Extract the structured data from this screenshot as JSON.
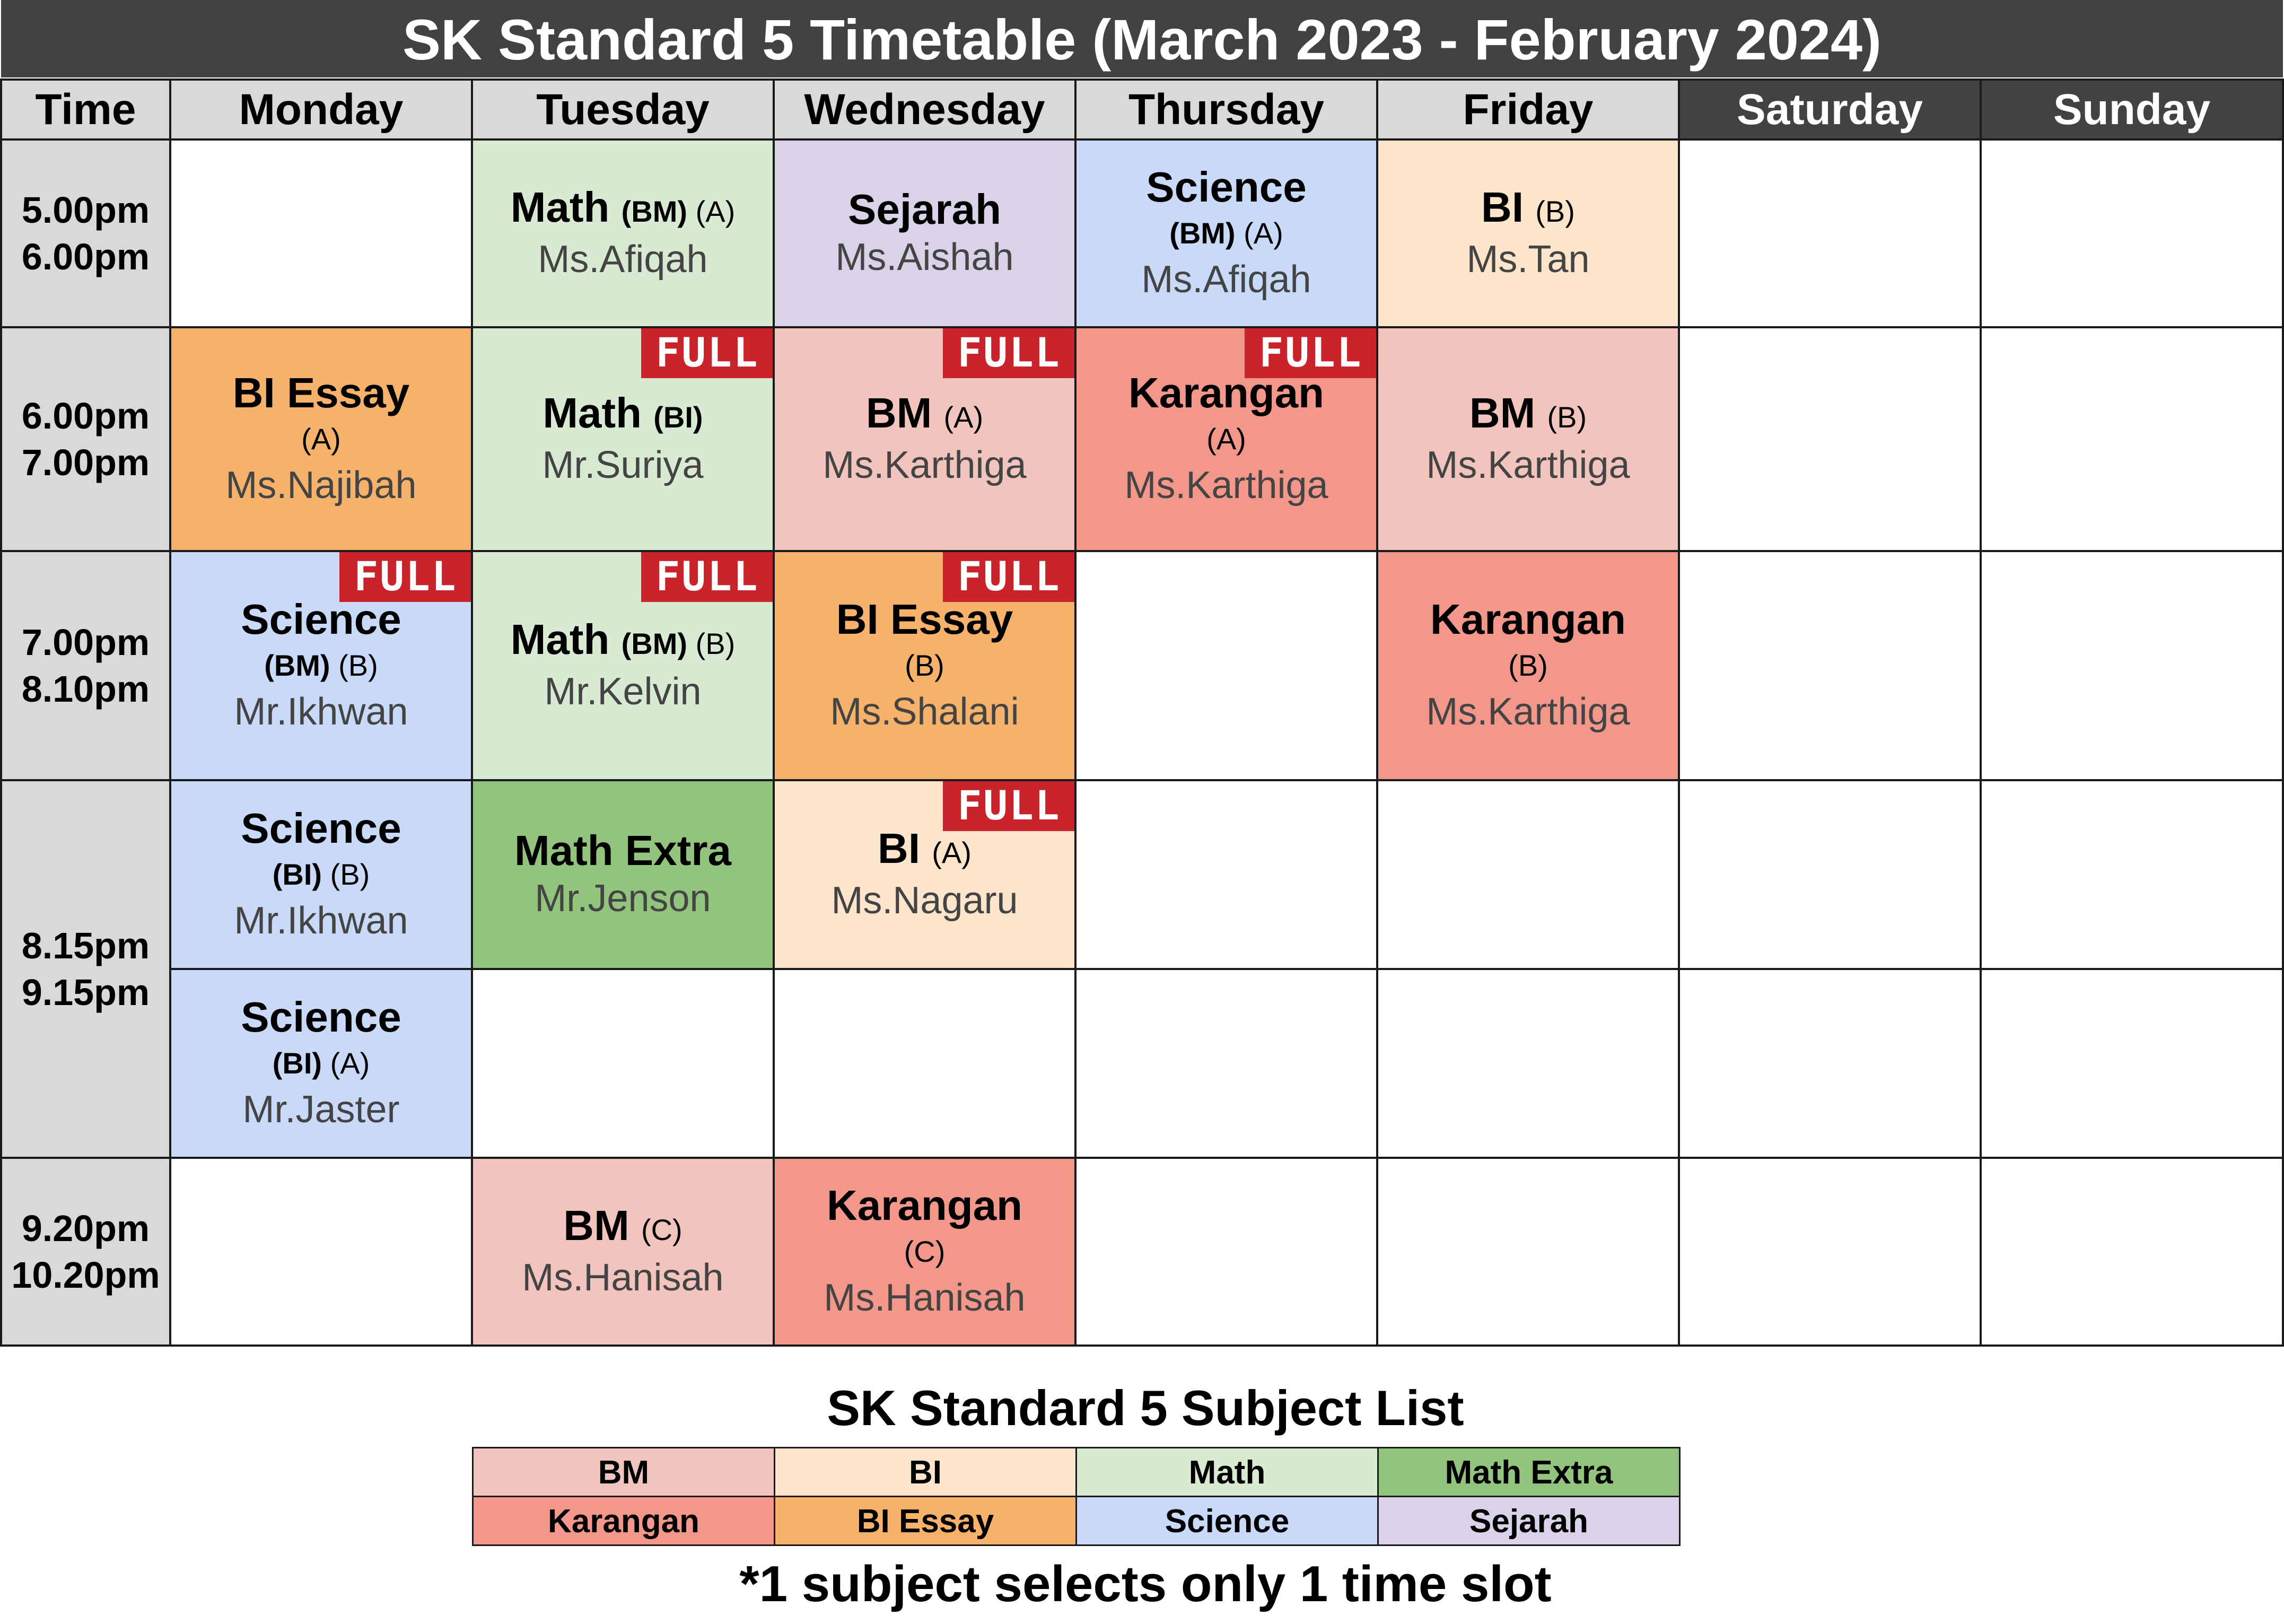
{
  "title": "SK Standard 5 Timetable (March 2023 - February 2024)",
  "header": {
    "time": "Time",
    "monday": "Monday",
    "tuesday": "Tuesday",
    "wednesday": "Wednesday",
    "thursday": "Thursday",
    "friday": "Friday",
    "saturday": "Saturday",
    "sunday": "Sunday"
  },
  "full_label": "FULL",
  "times": {
    "slot1": {
      "start": "5.00pm",
      "end": "6.00pm"
    },
    "slot2": {
      "start": "6.00pm",
      "end": "7.00pm"
    },
    "slot3": {
      "start": "7.00pm",
      "end": "8.10pm"
    },
    "slot4": {
      "start": "8.15pm",
      "end": "9.15pm"
    },
    "slot5": {
      "start": "9.20pm",
      "end": "10.20pm"
    }
  },
  "classes": {
    "tue_1": {
      "subject": "Math",
      "medium": "(BM)",
      "group": "(A)",
      "teacher": "Ms.Afiqah"
    },
    "wed_1": {
      "subject": "Sejarah",
      "teacher": "Ms.Aishah"
    },
    "thu_1": {
      "subject": "Science",
      "medium": "(BM)",
      "group": "(A)",
      "teacher": "Ms.Afiqah"
    },
    "fri_1": {
      "subject": "BI",
      "group": "(B)",
      "teacher": "Ms.Tan"
    },
    "mon_2": {
      "subject": "BI Essay",
      "group": "(A)",
      "teacher": "Ms.Najibah"
    },
    "tue_2": {
      "subject": "Math",
      "medium": "(BI)",
      "teacher": "Mr.Suriya"
    },
    "wed_2": {
      "subject": "BM",
      "group": "(A)",
      "teacher": "Ms.Karthiga"
    },
    "thu_2": {
      "subject": "Karangan",
      "group": "(A)",
      "teacher": "Ms.Karthiga"
    },
    "fri_2": {
      "subject": "BM",
      "group": "(B)",
      "teacher": "Ms.Karthiga"
    },
    "mon_3": {
      "subject": "Science",
      "medium": "(BM)",
      "group": "(B)",
      "teacher": "Mr.Ikhwan"
    },
    "tue_3": {
      "subject": "Math",
      "medium": "(BM)",
      "group": "(B)",
      "teacher": "Mr.Kelvin"
    },
    "wed_3": {
      "subject": "BI Essay",
      "group": "(B)",
      "teacher": "Ms.Shalani"
    },
    "fri_3": {
      "subject": "Karangan",
      "group": "(B)",
      "teacher": "Ms.Karthiga"
    },
    "mon_4a": {
      "subject": "Science",
      "medium": "(BI)",
      "group": "(B)",
      "teacher": "Mr.Ikhwan"
    },
    "tue_4": {
      "subject": "Math Extra",
      "teacher": "Mr.Jenson"
    },
    "wed_4": {
      "subject": "BI",
      "group": "(A)",
      "teacher": "Ms.Nagaru"
    },
    "mon_4b": {
      "subject": "Science",
      "medium": "(BI)",
      "group": "(A)",
      "teacher": "Mr.Jaster"
    },
    "tue_5": {
      "subject": "BM",
      "group": "(C)",
      "teacher": "Ms.Hanisah"
    },
    "wed_5": {
      "subject": "Karangan",
      "group": "(C)",
      "teacher": "Ms.Hanisah"
    }
  },
  "legend": {
    "title": "SK Standard 5 Subject List",
    "bm": "BM",
    "bi": "BI",
    "math": "Math",
    "math_extra": "Math Extra",
    "karangan": "Karangan",
    "bi_essay": "BI Essay",
    "science": "Science",
    "sejarah": "Sejarah"
  },
  "colors": {
    "bm": "#f2c4be",
    "bi": "#fde5cc",
    "math": "#d9ead3",
    "math_extra": "#93c47d",
    "karangan": "#f4978b",
    "bi_essay": "#f6b26b",
    "science": "#c9daf8",
    "sejarah": "#d9d2e9",
    "header_dark": "#424242",
    "header_light": "#d9d9d9",
    "full_badge": "#c9242c"
  },
  "footnote": "*1 subject selects only 1 time slot"
}
